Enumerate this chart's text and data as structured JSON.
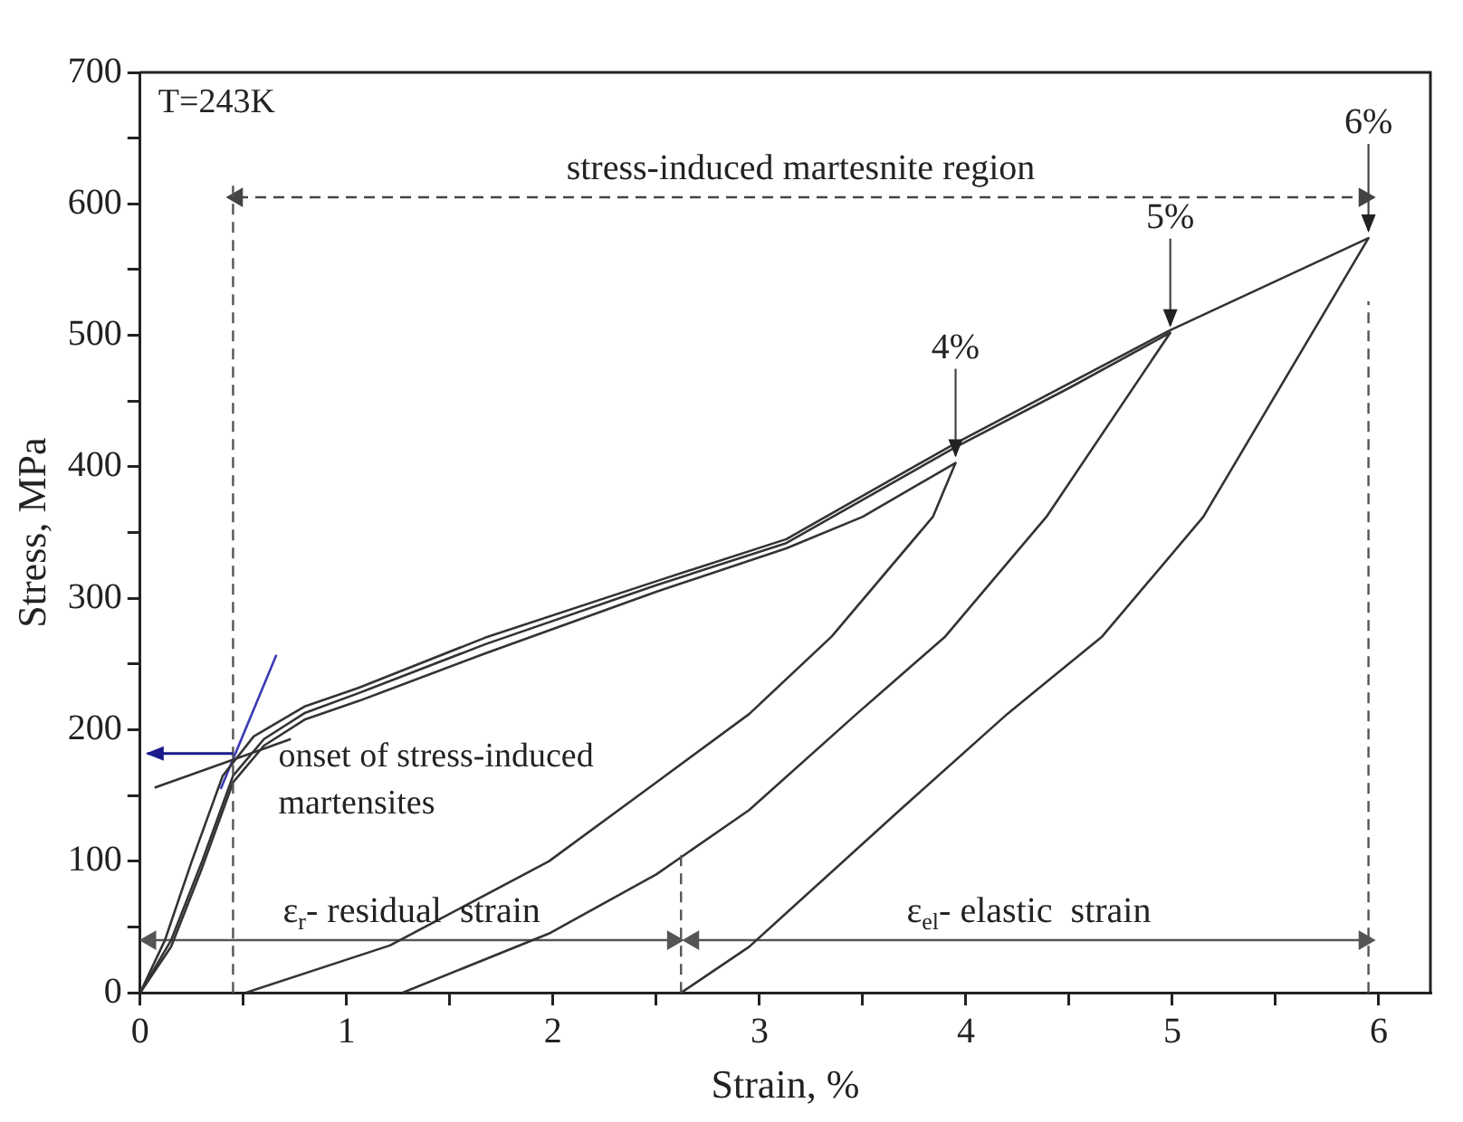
{
  "chart_data": {
    "type": "line",
    "xlabel": "Strain, %",
    "ylabel": "Stress, MPa",
    "xlim": [
      0,
      6.25
    ],
    "ylim": [
      0,
      700
    ],
    "xticks": [
      0,
      {
        "value": 0.5,
        "label": null
      },
      1,
      {
        "value": 1.5,
        "label": null
      },
      2,
      {
        "value": 2.5,
        "label": null
      },
      3,
      {
        "value": 3.5,
        "label": null
      },
      4,
      {
        "value": 4.5,
        "label": null
      },
      5,
      {
        "value": 5.5,
        "label": null
      },
      6
    ],
    "yticks": [
      0,
      {
        "value": 50,
        "label": null
      },
      100,
      {
        "value": 150,
        "label": null
      },
      200,
      {
        "value": 250,
        "label": null
      },
      300,
      {
        "value": 350,
        "label": null
      },
      400,
      {
        "value": 450,
        "label": null
      },
      500,
      {
        "value": 550,
        "label": null
      },
      600,
      {
        "value": 650,
        "label": null
      },
      700
    ],
    "grid": false,
    "legend": false,
    "marker": "none",
    "line_style": "solid",
    "series": [
      {
        "color": "#333333",
        "x": [
          0,
          0.15,
          0.3,
          0.45,
          0.6,
          0.8,
          1.06,
          1.67,
          2.5,
          3.13,
          3.5,
          3.95,
          3.84,
          3.35,
          2.95,
          2.5,
          1.98,
          1.21,
          0.51
        ],
        "values": [
          0,
          35,
          95,
          160,
          188,
          208,
          222,
          258,
          305,
          338,
          362,
          403,
          362,
          271,
          212,
          160,
          100,
          36,
          0
        ]
      },
      {
        "color": "#333333",
        "x": [
          0,
          0.15,
          0.3,
          0.45,
          0.6,
          0.8,
          1.06,
          1.67,
          2.5,
          3.13,
          3.95,
          4.5,
          4.99,
          4.39,
          3.9,
          3.47,
          2.95,
          2.5,
          1.98,
          1.27
        ],
        "values": [
          0,
          40,
          100,
          165,
          193,
          213,
          228,
          265,
          310,
          342,
          415,
          460,
          502,
          362,
          271,
          212,
          139,
          90,
          45,
          0
        ]
      },
      {
        "color": "#333333",
        "x": [
          0,
          0.12,
          0.25,
          0.4,
          0.55,
          0.8,
          1.06,
          1.67,
          2.5,
          3.13,
          3.95,
          4.99,
          5.95,
          5.15,
          4.66,
          4.2,
          3.68,
          2.95,
          2.62
        ],
        "values": [
          0,
          40,
          100,
          165,
          195,
          218,
          232,
          270,
          313,
          345,
          418,
          504,
          574,
          362,
          271,
          212,
          139,
          35,
          0
        ]
      },
      {
        "color": "#333333",
        "x": [
          0.07,
          0.73
        ],
        "values": [
          156,
          193
        ]
      },
      {
        "color": "#3b3bb5",
        "x": [
          0.39,
          0.66
        ],
        "values": [
          155,
          257
        ]
      },
      {
        "color": "#444444",
        "marker": "triangle",
        "line_style": "dashed",
        "x": [
          0.47,
          5.93
        ],
        "values": [
          605,
          605
        ]
      },
      {
        "color": "#555555",
        "marker": "triangle",
        "x": [
          0.05,
          2.58
        ],
        "values": [
          40,
          40
        ]
      },
      {
        "color": "#555555",
        "marker": "triangle",
        "x": [
          2.68,
          5.93
        ],
        "values": [
          40,
          40
        ]
      }
    ],
    "ref_lines": [
      {
        "axis": "x",
        "value": 0.45,
        "color": "#555555",
        "line_style": "dashed"
      },
      {
        "axis": "x",
        "value": 2.62,
        "color": "#555555",
        "line_style": "dashed"
      },
      {
        "axis": "x",
        "value": 5.95,
        "color": "#555555",
        "line_style": "dashed"
      }
    ],
    "annotations": [
      "T=243K",
      "stress-induced martesnite region",
      "ε$_{r}$- residual  strain",
      "ε$_{el}$- elastic  strain",
      {
        "text": "4%",
        "x": 3.95,
        "y": 403
      },
      {
        "text": "5%",
        "x": 4.99,
        "y": 502
      },
      {
        "text": "6%",
        "x": 5.95,
        "y": 574
      },
      {
        "text": "onset of stress-induced martensites",
        "x": 0.45,
        "y": 182
      }
    ]
  }
}
